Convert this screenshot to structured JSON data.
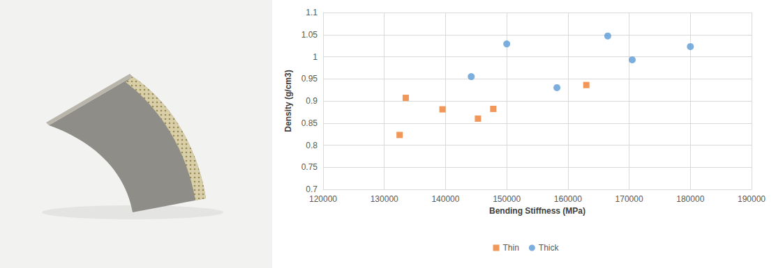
{
  "chart_data": {
    "type": "scatter",
    "x_label": "Bending Stiffness (MPa)",
    "y_label": "Density (g/cm3)",
    "series": [
      {
        "name": "Thin",
        "color": "#ed7d31",
        "marker": "square",
        "x": [
          132500,
          133500,
          139500,
          145300,
          147800,
          163000
        ],
        "values": [
          0.823,
          0.907,
          0.881,
          0.86,
          0.882,
          0.936
        ]
      },
      {
        "name": "Thick",
        "color": "#5b9bd5",
        "marker": "circle",
        "x": [
          144200,
          150000,
          158200,
          166500,
          170500,
          180000
        ],
        "values": [
          0.955,
          1.029,
          0.93,
          1.047,
          0.993,
          1.023
        ]
      }
    ],
    "xlim": [
      120000,
      190000
    ],
    "xticks": [
      120000,
      130000,
      140000,
      150000,
      160000,
      170000,
      180000,
      190000
    ],
    "ylim": [
      0.7,
      1.1
    ],
    "yticks": [
      0.7,
      0.75,
      0.8,
      0.85,
      0.9,
      0.95,
      1,
      1.05,
      1.1
    ],
    "grid": true,
    "legend": "bottom"
  }
}
